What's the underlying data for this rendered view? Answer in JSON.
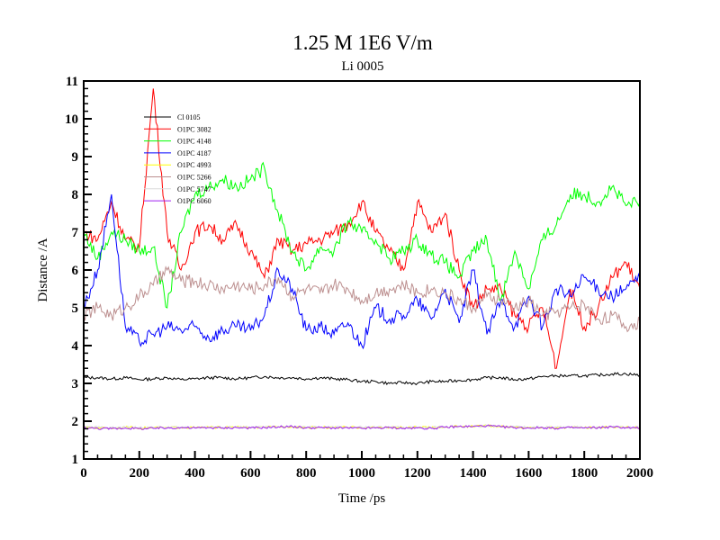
{
  "chart_data": {
    "type": "line",
    "title": "1.25 M 1E6 V/m",
    "subtitle": "Li 0005",
    "xlabel": "Time /ps",
    "ylabel": "Distance /A",
    "xlim": [
      0,
      2000
    ],
    "ylim": [
      1,
      11
    ],
    "xticks": [
      0,
      200,
      400,
      600,
      800,
      1000,
      1200,
      1400,
      1600,
      1800,
      2000
    ],
    "yticks": [
      1,
      2,
      3,
      4,
      5,
      6,
      7,
      8,
      9,
      10,
      11
    ],
    "grid": false,
    "legend_position": "top-left",
    "x_start": 0,
    "x_step": 50,
    "series": [
      {
        "name": "Cl 0105",
        "color": "#000000",
        "values": [
          3.15,
          3.15,
          3.12,
          3.15,
          3.1,
          3.12,
          3.15,
          3.1,
          3.12,
          3.15,
          3.15,
          3.12,
          3.15,
          3.18,
          3.15,
          3.15,
          3.12,
          3.15,
          3.12,
          3.1,
          3.05,
          3.05,
          3.0,
          3.02,
          3.0,
          3.05,
          3.05,
          3.08,
          3.1,
          3.15,
          3.15,
          3.1,
          3.12,
          3.18,
          3.2,
          3.2,
          3.2,
          3.22,
          3.25,
          3.25,
          3.22
        ]
      },
      {
        "name": "O1PC 3082",
        "color": "#ff0000",
        "values": [
          7.0,
          6.8,
          7.8,
          6.8,
          6.6,
          10.8,
          7.0,
          6.0,
          7.0,
          7.2,
          6.8,
          7.2,
          6.5,
          5.8,
          6.8,
          6.5,
          6.7,
          6.8,
          7.0,
          7.2,
          7.8,
          7.0,
          6.5,
          6.0,
          7.8,
          7.0,
          7.5,
          6.0,
          5.0,
          5.5,
          5.5,
          4.8,
          4.5,
          5.0,
          3.4,
          5.5,
          4.5,
          5.0,
          5.8,
          6.2,
          5.5
        ]
      },
      {
        "name": "O1PC 4148",
        "color": "#00ff00",
        "values": [
          7.0,
          6.3,
          7.0,
          6.8,
          6.5,
          6.6,
          5.0,
          7.0,
          8.0,
          8.2,
          8.4,
          8.2,
          8.4,
          8.7,
          7.5,
          6.5,
          6.0,
          6.6,
          6.5,
          7.3,
          7.0,
          6.8,
          6.3,
          6.5,
          6.8,
          6.4,
          6.2,
          5.8,
          6.5,
          6.8,
          5.2,
          6.5,
          5.5,
          6.8,
          7.2,
          8.0,
          8.0,
          7.8,
          8.2,
          7.7,
          7.8
        ]
      },
      {
        "name": "O1PC 4187",
        "color": "#0000ff",
        "values": [
          5.0,
          6.0,
          8.0,
          4.5,
          4.1,
          4.3,
          4.5,
          4.4,
          4.5,
          4.2,
          4.4,
          4.5,
          4.4,
          4.8,
          6.0,
          5.5,
          4.4,
          4.5,
          4.3,
          4.6,
          4.0,
          5.0,
          4.7,
          4.8,
          5.2,
          4.7,
          5.5,
          4.6,
          6.0,
          4.3,
          5.2,
          4.5,
          5.3,
          4.5,
          5.5,
          5.3,
          5.8,
          5.5,
          5.3,
          5.5,
          5.8
        ]
      },
      {
        "name": "O1PC 4993",
        "color": "#ffff00",
        "values": [
          1.83,
          1.83,
          1.82,
          1.84,
          1.82,
          1.83,
          1.83,
          1.84,
          1.83,
          1.84,
          1.83,
          1.85,
          1.83,
          1.84,
          1.85,
          1.86,
          1.83,
          1.84,
          1.83,
          1.84,
          1.83,
          1.83,
          1.84,
          1.83,
          1.84,
          1.83,
          1.85,
          1.86,
          1.86,
          1.88,
          1.86,
          1.84,
          1.83,
          1.84,
          1.83,
          1.84,
          1.83,
          1.84,
          1.85,
          1.84,
          1.83
        ]
      },
      {
        "name": "O1PC 5266",
        "color": "#bc8f8f",
        "values": [
          4.8,
          5.0,
          4.8,
          5.0,
          5.3,
          5.6,
          6.0,
          5.7,
          5.7,
          5.6,
          5.5,
          5.6,
          5.5,
          5.6,
          5.8,
          5.3,
          5.5,
          5.4,
          5.6,
          5.5,
          5.2,
          5.4,
          5.5,
          5.6,
          5.4,
          5.5,
          5.4,
          5.2,
          5.0,
          5.3,
          5.2,
          5.0,
          5.2,
          4.8,
          4.9,
          5.0,
          5.1,
          4.7,
          4.8,
          4.5,
          4.6
        ]
      },
      {
        "name": "O1PC 5747",
        "color": "#dcdcdc",
        "values": [
          1.84,
          1.84,
          1.83,
          1.84,
          1.83,
          1.84,
          1.84,
          1.84,
          1.84,
          1.84,
          1.84,
          1.84,
          1.84,
          1.84,
          1.85,
          1.85,
          1.84,
          1.84,
          1.84,
          1.84,
          1.84,
          1.84,
          1.84,
          1.84,
          1.84,
          1.84,
          1.85,
          1.86,
          1.86,
          1.87,
          1.86,
          1.85,
          1.84,
          1.84,
          1.84,
          1.84,
          1.84,
          1.84,
          1.85,
          1.84,
          1.84
        ]
      },
      {
        "name": "O1PC 6060",
        "color": "#a020f0",
        "values": [
          1.82,
          1.81,
          1.8,
          1.82,
          1.8,
          1.81,
          1.82,
          1.83,
          1.82,
          1.83,
          1.82,
          1.83,
          1.82,
          1.83,
          1.85,
          1.86,
          1.82,
          1.83,
          1.82,
          1.82,
          1.81,
          1.82,
          1.83,
          1.81,
          1.82,
          1.81,
          1.84,
          1.86,
          1.86,
          1.88,
          1.85,
          1.83,
          1.82,
          1.83,
          1.81,
          1.83,
          1.82,
          1.83,
          1.85,
          1.83,
          1.82
        ]
      }
    ]
  }
}
